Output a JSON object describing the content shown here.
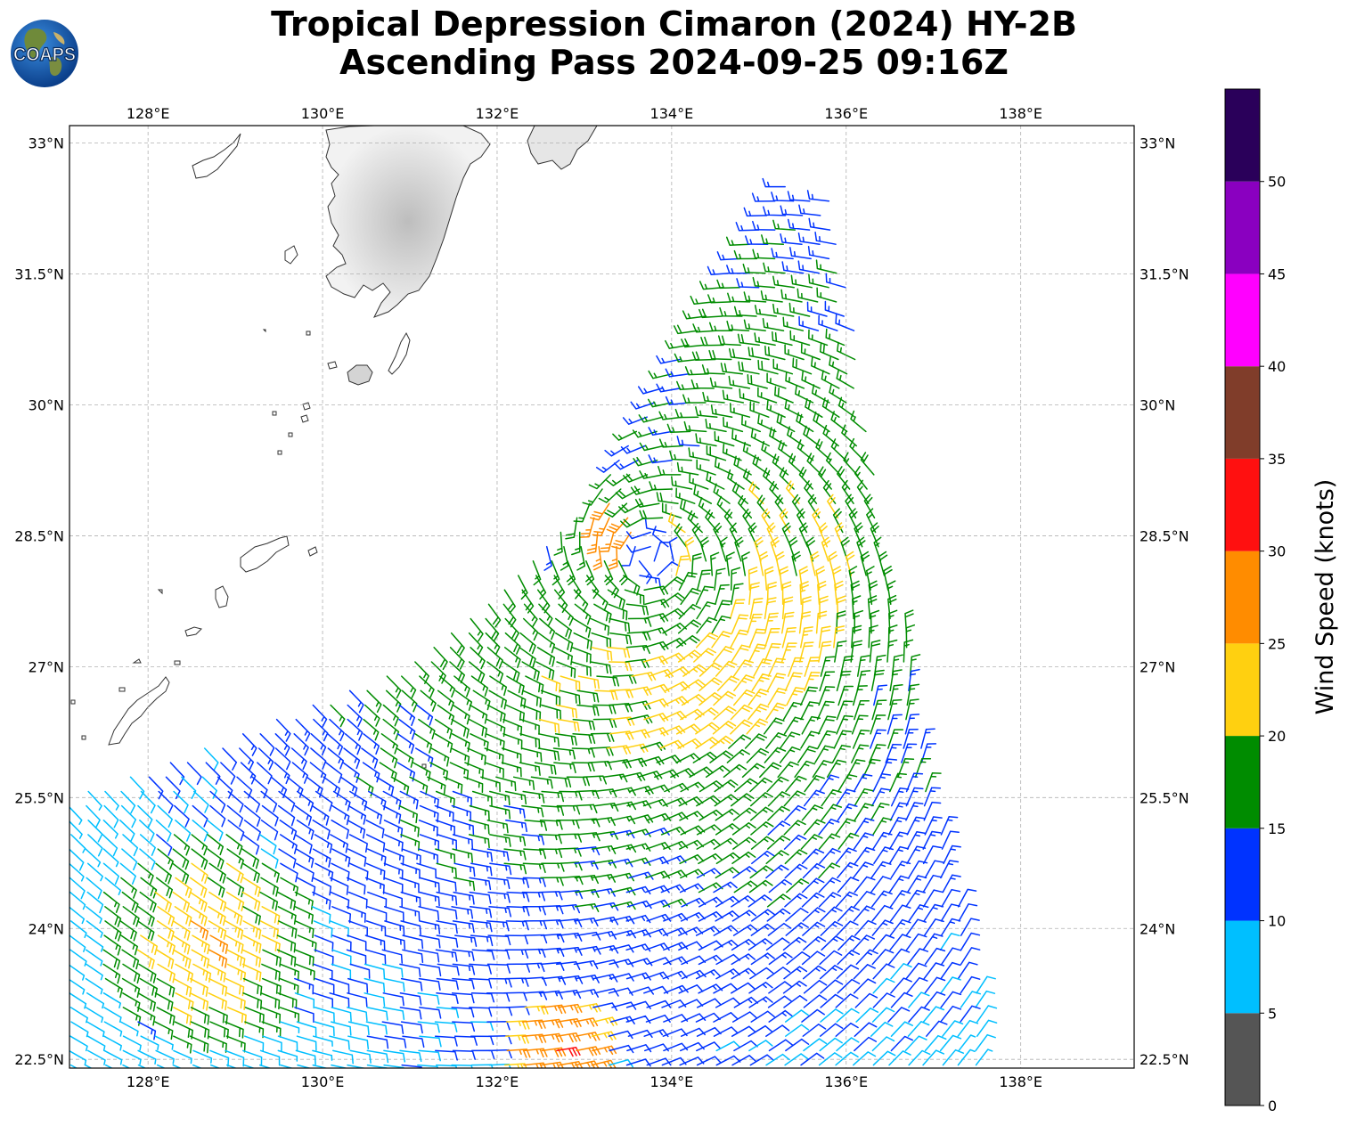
{
  "title_line1": "Tropical Depression Cimaron (2024) HY-2B",
  "title_line2": "Ascending Pass 2024-09-25 09:16Z",
  "logo_text": "COAPS",
  "map": {
    "lon_range": [
      127.1,
      139.3
    ],
    "lat_range": [
      22.4,
      33.2
    ],
    "lon_ticks": [
      "128°E",
      "130°E",
      "132°E",
      "134°E",
      "136°E",
      "138°E"
    ],
    "lat_ticks": [
      "22.5°N",
      "24°N",
      "25.5°N",
      "27°N",
      "28.5°N",
      "30°N",
      "31.5°N",
      "33°N"
    ],
    "gridlines": true,
    "storm_center": {
      "lon": 133.75,
      "lat": 28.25
    },
    "swath_east_edge": [
      [
        135.3,
        32.5
      ],
      [
        135.8,
        32.5
      ],
      [
        136.0,
        31.6
      ],
      [
        136.2,
        30.0
      ],
      [
        136.6,
        28.0
      ],
      [
        136.9,
        26.0
      ],
      [
        137.3,
        24.3
      ],
      [
        137.7,
        22.4
      ]
    ],
    "swath_west_edge": [
      [
        135.3,
        32.5
      ],
      [
        134.5,
        31.2
      ],
      [
        133.2,
        29.0
      ],
      [
        132.0,
        27.8
      ],
      [
        131.0,
        27.0
      ],
      [
        129.5,
        26.4
      ],
      [
        128.0,
        25.8
      ],
      [
        127.1,
        25.5
      ],
      [
        127.1,
        22.4
      ]
    ]
  },
  "colorbar": {
    "label": "Wind Speed (knots)",
    "ticks": [
      "0",
      "5",
      "10",
      "15",
      "20",
      "25",
      "30",
      "35",
      "40",
      "45",
      "50"
    ],
    "bins": [
      {
        "min": 0,
        "max": 5,
        "color": "#555555"
      },
      {
        "min": 5,
        "max": 10,
        "color": "#00bfff"
      },
      {
        "min": 10,
        "max": 15,
        "color": "#0033ff"
      },
      {
        "min": 15,
        "max": 20,
        "color": "#008c00"
      },
      {
        "min": 20,
        "max": 25,
        "color": "#ffd010"
      },
      {
        "min": 25,
        "max": 30,
        "color": "#ff8c00"
      },
      {
        "min": 30,
        "max": 35,
        "color": "#ff1010"
      },
      {
        "min": 35,
        "max": 40,
        "color": "#803d2a"
      },
      {
        "min": 40,
        "max": 45,
        "color": "#ff00ff"
      },
      {
        "min": 45,
        "max": 50,
        "color": "#8a00c0"
      },
      {
        "min": 50,
        "max": 55,
        "color": "#2a005a"
      }
    ],
    "range": [
      0,
      55
    ]
  }
}
